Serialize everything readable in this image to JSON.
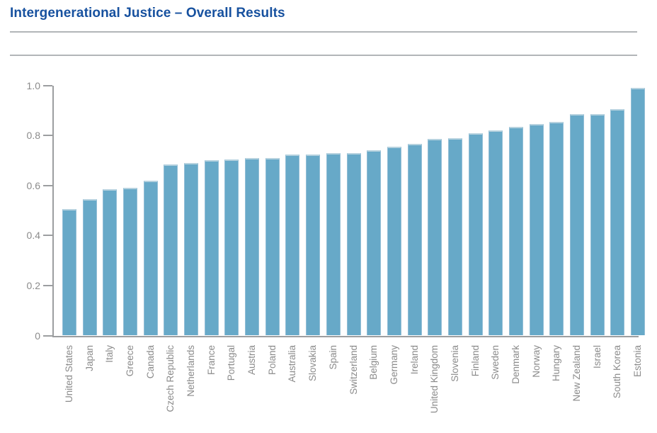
{
  "header": {
    "title": "Intergenerational Justice – Overall Results"
  },
  "chart_data": {
    "type": "bar",
    "title": "Intergenerational Justice – Overall Results",
    "categories": [
      "United States",
      "Japan",
      "Italy",
      "Greece",
      "Canada",
      "Czech Republic",
      "Netherlands",
      "France",
      "Portugal",
      "Austria",
      "Poland",
      "Australia",
      "Slovakia",
      "Spain",
      "Switzerland",
      "Belgium",
      "Germany",
      "Ireland",
      "United Kingdom",
      "Slovenia",
      "Finland",
      "Sweden",
      "Denmark",
      "Norway",
      "Hungary",
      "New Zealand",
      "Israel",
      "South Korea",
      "Estonia"
    ],
    "values": [
      0.505,
      0.545,
      0.585,
      0.59,
      0.62,
      0.685,
      0.69,
      0.7,
      0.705,
      0.71,
      0.71,
      0.725,
      0.725,
      0.73,
      0.73,
      0.74,
      0.755,
      0.765,
      0.785,
      0.79,
      0.81,
      0.82,
      0.835,
      0.845,
      0.855,
      0.885,
      0.885,
      0.905,
      0.99
    ],
    "xlabel": "",
    "ylabel": "",
    "ylim": [
      0,
      1.0
    ],
    "ytick_labels": [
      "0",
      "0.2",
      "0.4",
      "0.6",
      "0.8",
      "1.0"
    ],
    "ytick_values": [
      0,
      0.2,
      0.4,
      0.6,
      0.8,
      1.0
    ],
    "grid": false,
    "legend": "none",
    "colors": {
      "title": "#17519f",
      "bar_fill": "#67a9c8",
      "bar_edge_top": "#b6d2df",
      "bar_edge_side": "#93bed6",
      "axis": "#9c9ea0",
      "tick_text": "#8b8b8b",
      "category_text": "#8b8b8b",
      "rule": "#b2b5b8"
    }
  }
}
